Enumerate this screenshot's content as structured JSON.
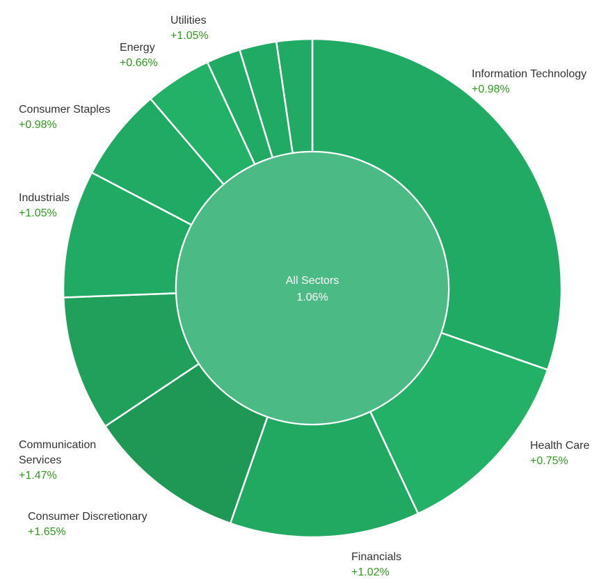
{
  "chart_data": {
    "type": "pie",
    "style": "sunburst-donut",
    "center": {
      "label": "All Sectors",
      "value": "1.06%",
      "color": "#4cba84"
    },
    "sectors": [
      {
        "name": "Information Technology",
        "name_lines": [
          "Information Technology"
        ],
        "weight": 31.5,
        "change": "+0.98%",
        "color": "#21aa63"
      },
      {
        "name": "Health Care",
        "name_lines": [
          "Health Care"
        ],
        "weight": 13.2,
        "change": "+0.75%",
        "color": "#22b166"
      },
      {
        "name": "Financials",
        "name_lines": [
          "Financials"
        ],
        "weight": 12.8,
        "change": "+1.02%",
        "color": "#21a962"
      },
      {
        "name": "Consumer Discretionary",
        "name_lines": [
          "Consumer Discretionary"
        ],
        "weight": 10.7,
        "change": "+1.65%",
        "color": "#1f9855"
      },
      {
        "name": "Communication Services",
        "name_lines": [
          "Communication",
          "Services"
        ],
        "weight": 9.1,
        "change": "+1.47%",
        "color": "#20a05a"
      },
      {
        "name": "Industrials",
        "name_lines": [
          "Industrials"
        ],
        "weight": 8.6,
        "change": "+1.05%",
        "color": "#21aa63"
      },
      {
        "name": "Consumer Staples",
        "name_lines": [
          "Consumer Staples"
        ],
        "weight": 6.3,
        "change": "+0.98%",
        "color": "#21aa63"
      },
      {
        "name": "Energy",
        "name_lines": [
          "Energy"
        ],
        "weight": 4.5,
        "change": "+0.66%",
        "color": "#22b166"
      },
      {
        "name": "Utilities",
        "name_lines": [
          "Utilities"
        ],
        "weight": 2.3,
        "change": "+1.05%",
        "color": "#21aa63"
      },
      {
        "name": "",
        "name_lines": [],
        "weight": 2.5,
        "change": "",
        "color": "#21aa63"
      },
      {
        "name": "",
        "name_lines": [],
        "weight": 2.4,
        "change": "",
        "color": "#21aa63"
      }
    ],
    "separator_color": "#ffffff",
    "name_color": "#333333",
    "change_color": "#2e9a1e"
  }
}
